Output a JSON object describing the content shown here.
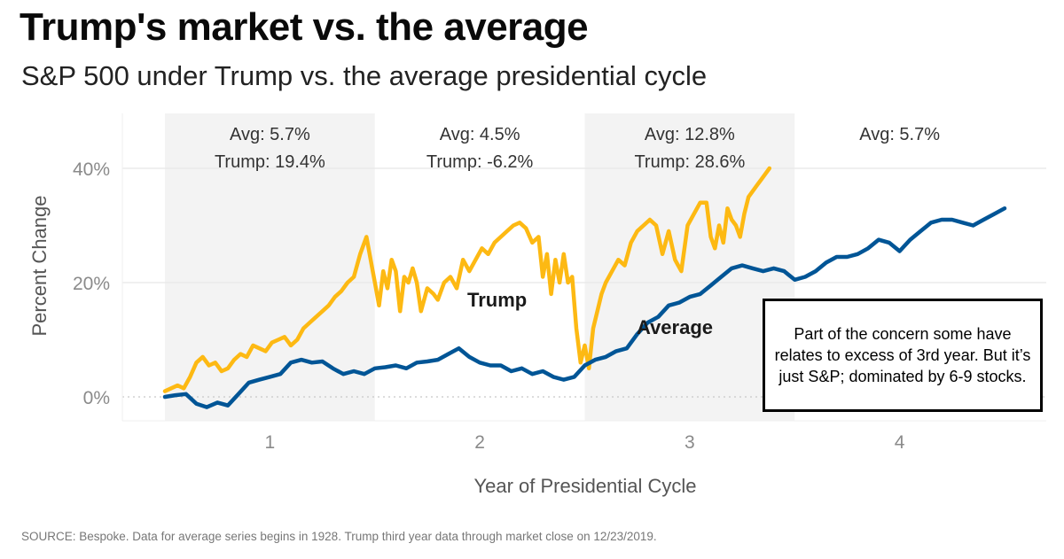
{
  "header": {
    "title": "Trump's market vs. the average",
    "subtitle": "S&P 500 under Trump vs. the average presidential cycle"
  },
  "footer": {
    "source": "SOURCE: Bespoke. Data for average series begins in 1928. Trump third year data through market close on 12/23/2019."
  },
  "annotation_box": {
    "text": "Part of the concern some have relates to excess of 3rd year. But it’s just S&P; dominated by 6-9 stocks."
  },
  "colors": {
    "trump": "#FDB913",
    "average": "#005596",
    "band": "#F3F3F3",
    "grid": "#E8E8E8"
  },
  "chart_data": {
    "type": "line",
    "title": "Trump's market vs. the average",
    "subtitle": "S&P 500 under Trump vs. the average presidential cycle",
    "xlabel": "Year of Presidential Cycle",
    "ylabel": "Percent Change",
    "xlim": [
      0,
      4
    ],
    "ylim": [
      -5,
      44
    ],
    "x_ticks": [
      {
        "label": "1",
        "value": 0.5
      },
      {
        "label": "2",
        "value": 1.5
      },
      {
        "label": "3",
        "value": 2.5
      },
      {
        "label": "4",
        "value": 3.5
      }
    ],
    "y_ticks": [
      {
        "label": "0%",
        "value": 0
      },
      {
        "label": "20%",
        "value": 20
      },
      {
        "label": "40%",
        "value": 40
      }
    ],
    "grid": true,
    "shaded_years": [
      1,
      3
    ],
    "year_annotations": [
      {
        "year": 1,
        "avg": "Avg: 5.7%",
        "trump": "Trump: 19.4%"
      },
      {
        "year": 2,
        "avg": "Avg: 4.5%",
        "trump": "Trump: -6.2%"
      },
      {
        "year": 3,
        "avg": "Avg: 12.8%",
        "trump": "Trump: 28.6%"
      },
      {
        "year": 4,
        "avg": "Avg: 5.7%",
        "trump": ""
      }
    ],
    "series": [
      {
        "name": "Trump",
        "label": "Trump",
        "x": [
          0,
          0.03,
          0.06,
          0.09,
          0.12,
          0.15,
          0.18,
          0.21,
          0.24,
          0.27,
          0.3,
          0.33,
          0.36,
          0.39,
          0.42,
          0.45,
          0.48,
          0.51,
          0.54,
          0.57,
          0.6,
          0.63,
          0.66,
          0.69,
          0.72,
          0.75,
          0.78,
          0.81,
          0.84,
          0.87,
          0.9,
          0.93,
          0.96,
          0.99,
          1.0,
          1.02,
          1.04,
          1.06,
          1.08,
          1.1,
          1.12,
          1.14,
          1.16,
          1.18,
          1.2,
          1.22,
          1.25,
          1.28,
          1.3,
          1.33,
          1.36,
          1.39,
          1.42,
          1.45,
          1.48,
          1.51,
          1.54,
          1.57,
          1.6,
          1.63,
          1.66,
          1.69,
          1.72,
          1.75,
          1.78,
          1.8,
          1.82,
          1.84,
          1.86,
          1.88,
          1.9,
          1.92,
          1.94,
          1.96,
          1.98,
          2.0,
          2.02,
          2.04,
          2.06,
          2.08,
          2.1,
          2.13,
          2.16,
          2.19,
          2.22,
          2.25,
          2.28,
          2.31,
          2.34,
          2.37,
          2.4,
          2.43,
          2.46,
          2.49,
          2.52,
          2.55,
          2.58,
          2.6,
          2.62,
          2.64,
          2.66,
          2.68,
          2.7,
          2.72,
          2.74,
          2.76,
          2.78,
          2.8,
          2.82,
          2.84,
          2.86,
          2.88
        ],
        "values": [
          1,
          1.5,
          2,
          1.5,
          3.5,
          6,
          7,
          5.5,
          6,
          4.5,
          5,
          6.5,
          7.5,
          7,
          9,
          8.5,
          8,
          9.5,
          10,
          10.5,
          9,
          10,
          12,
          13,
          14,
          15,
          16,
          17.5,
          18.5,
          20,
          21,
          25,
          28,
          22,
          20,
          16,
          22,
          19,
          24,
          22,
          15,
          21,
          20,
          22.5,
          20,
          15,
          19,
          18,
          17,
          20,
          21,
          19,
          24,
          22,
          24,
          26,
          25,
          27,
          28,
          29,
          30,
          30.5,
          29.5,
          27,
          28,
          21,
          25,
          18,
          24,
          20,
          25,
          20,
          21,
          12,
          6,
          9,
          5,
          12,
          15,
          18,
          20,
          22,
          24,
          23,
          27,
          29,
          30,
          31,
          30,
          25,
          29,
          24,
          22,
          30,
          32,
          34,
          34,
          28,
          26,
          30,
          27,
          33,
          31,
          30,
          28,
          32,
          35,
          36,
          37,
          38,
          39,
          40
        ]
      },
      {
        "name": "Average",
        "label": "Average",
        "x": [
          0,
          0.05,
          0.1,
          0.15,
          0.2,
          0.25,
          0.3,
          0.35,
          0.4,
          0.45,
          0.5,
          0.55,
          0.6,
          0.65,
          0.7,
          0.75,
          0.8,
          0.85,
          0.9,
          0.95,
          1.0,
          1.05,
          1.1,
          1.15,
          1.2,
          1.25,
          1.3,
          1.35,
          1.4,
          1.45,
          1.5,
          1.55,
          1.6,
          1.65,
          1.7,
          1.75,
          1.8,
          1.85,
          1.9,
          1.95,
          2.0,
          2.05,
          2.1,
          2.15,
          2.2,
          2.25,
          2.3,
          2.35,
          2.4,
          2.45,
          2.5,
          2.55,
          2.6,
          2.65,
          2.7,
          2.75,
          2.8,
          2.85,
          2.9,
          2.95,
          3.0,
          3.05,
          3.1,
          3.15,
          3.2,
          3.25,
          3.3,
          3.35,
          3.4,
          3.45,
          3.5,
          3.55,
          3.6,
          3.65,
          3.7,
          3.75,
          3.8,
          3.85,
          3.9,
          3.95,
          4.0
        ],
        "values": [
          0,
          0.3,
          0.5,
          -1.2,
          -1.8,
          -1.0,
          -1.5,
          0.5,
          2.5,
          3.0,
          3.5,
          4.0,
          6.0,
          6.5,
          6.0,
          6.2,
          5.0,
          4.0,
          4.5,
          4.0,
          5.0,
          5.2,
          5.5,
          5.0,
          6.0,
          6.2,
          6.5,
          7.5,
          8.5,
          7.0,
          6.0,
          5.5,
          5.5,
          4.5,
          5.0,
          4.0,
          4.5,
          3.5,
          3.0,
          3.5,
          5.5,
          6.5,
          7.0,
          8.0,
          8.5,
          11.0,
          13.0,
          14.0,
          16.0,
          16.5,
          17.5,
          18.0,
          19.5,
          21.0,
          22.5,
          23.0,
          22.5,
          22.0,
          22.5,
          22.0,
          20.5,
          21.0,
          22.0,
          23.5,
          24.5,
          24.5,
          25.0,
          26.0,
          27.5,
          27.0,
          25.5,
          27.5,
          29.0,
          30.5,
          31.0,
          31.0,
          30.5,
          30.0,
          31.0,
          32.0,
          33.0
        ]
      }
    ]
  }
}
